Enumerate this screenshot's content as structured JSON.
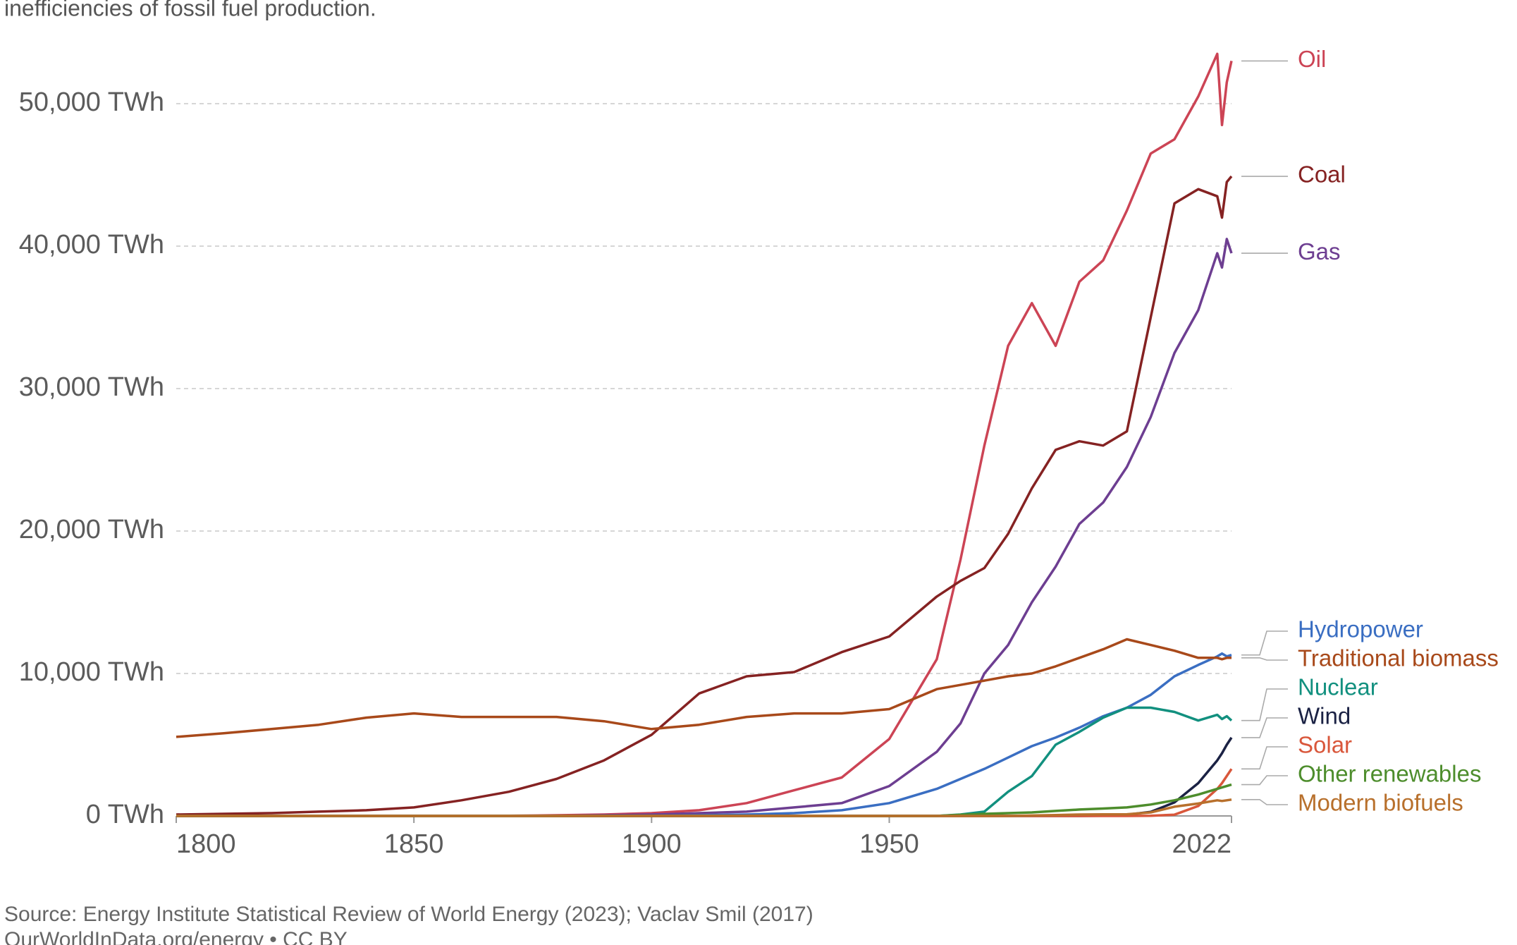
{
  "chart_data": {
    "type": "line",
    "subtitle": "inefficiencies of fossil fuel production.",
    "source": "Source: Energy Institute Statistical Review of World Energy (2023); Vaclav Smil (2017)",
    "footer": "OurWorldInData.org/energy • CC BY",
    "x": [
      1800,
      1810,
      1820,
      1830,
      1840,
      1850,
      1860,
      1870,
      1880,
      1890,
      1900,
      1910,
      1920,
      1930,
      1940,
      1950,
      1960,
      1965,
      1970,
      1975,
      1980,
      1985,
      1990,
      1995,
      2000,
      2005,
      2010,
      2015,
      2019,
      2020,
      2021,
      2022
    ],
    "xlim": [
      1800,
      2022
    ],
    "xticks": [
      1800,
      1850,
      1900,
      1950,
      2022
    ],
    "ylim": [
      0,
      55000
    ],
    "yticks": [
      {
        "value": 0,
        "label": "0 TWh"
      },
      {
        "value": 10000,
        "label": "10,000 TWh"
      },
      {
        "value": 20000,
        "label": "20,000 TWh"
      },
      {
        "value": 30000,
        "label": "30,000 TWh"
      },
      {
        "value": 40000,
        "label": "40,000 TWh"
      },
      {
        "value": 50000,
        "label": "50,000 TWh"
      }
    ],
    "grid": true,
    "series": [
      {
        "name": "Oil",
        "color": "#cc4455",
        "values": [
          0,
          0,
          0,
          0,
          0,
          0,
          0,
          10,
          50,
          100,
          200,
          400,
          900,
          1800,
          2700,
          5400,
          11000,
          18000,
          26000,
          33000,
          36000,
          33000,
          37500,
          39000,
          42500,
          46500,
          47500,
          50500,
          53500,
          48500,
          51500,
          53000
        ]
      },
      {
        "name": "Coal",
        "color": "#852222",
        "values": [
          100,
          150,
          200,
          300,
          400,
          600,
          1100,
          1700,
          2600,
          3900,
          5700,
          8600,
          9800,
          10100,
          11500,
          12600,
          15400,
          16500,
          17400,
          19800,
          23000,
          25700,
          26300,
          26000,
          27000,
          35000,
          43000,
          44000,
          43500,
          42000,
          44500,
          44900
        ]
      },
      {
        "name": "Gas",
        "color": "#6d3e91",
        "values": [
          0,
          0,
          0,
          0,
          0,
          0,
          0,
          0,
          0,
          50,
          100,
          200,
          300,
          600,
          900,
          2100,
          4500,
          6500,
          10000,
          12000,
          15000,
          17500,
          20500,
          22000,
          24500,
          28000,
          32500,
          35500,
          39500,
          38500,
          40500,
          39500
        ]
      },
      {
        "name": "Hydropower",
        "color": "#3a6ec2",
        "values": [
          0,
          0,
          0,
          0,
          0,
          0,
          0,
          0,
          0,
          0,
          20,
          50,
          100,
          200,
          400,
          900,
          1900,
          2600,
          3300,
          4100,
          4900,
          5500,
          6200,
          7000,
          7600,
          8500,
          9800,
          10600,
          11200,
          11400,
          11200,
          11300
        ]
      },
      {
        "name": "Traditional biomass",
        "color": "#a8491a",
        "values": [
          5550,
          5800,
          6100,
          6400,
          6900,
          7200,
          6950,
          6950,
          6950,
          6650,
          6100,
          6400,
          6950,
          7200,
          7200,
          7500,
          8900,
          9200,
          9500,
          9800,
          10000,
          10500,
          11100,
          11700,
          12400,
          12000,
          11600,
          11100,
          11100,
          11000,
          11100,
          11100
        ]
      },
      {
        "name": "Nuclear",
        "color": "#12907f",
        "values": [
          0,
          0,
          0,
          0,
          0,
          0,
          0,
          0,
          0,
          0,
          0,
          0,
          0,
          0,
          0,
          0,
          0,
          100,
          300,
          1700,
          2800,
          5000,
          5900,
          6900,
          7600,
          7600,
          7300,
          6700,
          7100,
          6800,
          7000,
          6700
        ]
      },
      {
        "name": "Wind",
        "color": "#1b2244",
        "values": [
          0,
          0,
          0,
          0,
          0,
          0,
          0,
          0,
          0,
          0,
          0,
          0,
          0,
          0,
          0,
          0,
          0,
          0,
          0,
          0,
          0,
          0,
          0,
          10,
          90,
          280,
          950,
          2300,
          3900,
          4400,
          5000,
          5500
        ]
      },
      {
        "name": "Solar",
        "color": "#d9573b",
        "values": [
          0,
          0,
          0,
          0,
          0,
          0,
          0,
          0,
          0,
          0,
          0,
          0,
          0,
          0,
          0,
          0,
          0,
          0,
          0,
          0,
          0,
          0,
          0,
          0,
          0,
          10,
          90,
          700,
          1900,
          2300,
          2800,
          3300
        ]
      },
      {
        "name": "Other renewables",
        "color": "#4d8d2c",
        "values": [
          0,
          0,
          0,
          0,
          0,
          0,
          0,
          0,
          0,
          0,
          0,
          0,
          0,
          0,
          0,
          0,
          0,
          80,
          150,
          200,
          250,
          350,
          450,
          520,
          600,
          800,
          1100,
          1500,
          1900,
          2000,
          2100,
          2200
        ]
      },
      {
        "name": "Modern biofuels",
        "color": "#b8702c",
        "values": [
          0,
          0,
          0,
          0,
          0,
          0,
          0,
          0,
          0,
          0,
          0,
          0,
          0,
          0,
          0,
          0,
          0,
          0,
          0,
          0,
          30,
          60,
          100,
          110,
          120,
          250,
          650,
          870,
          1100,
          1050,
          1100,
          1150
        ]
      }
    ]
  }
}
